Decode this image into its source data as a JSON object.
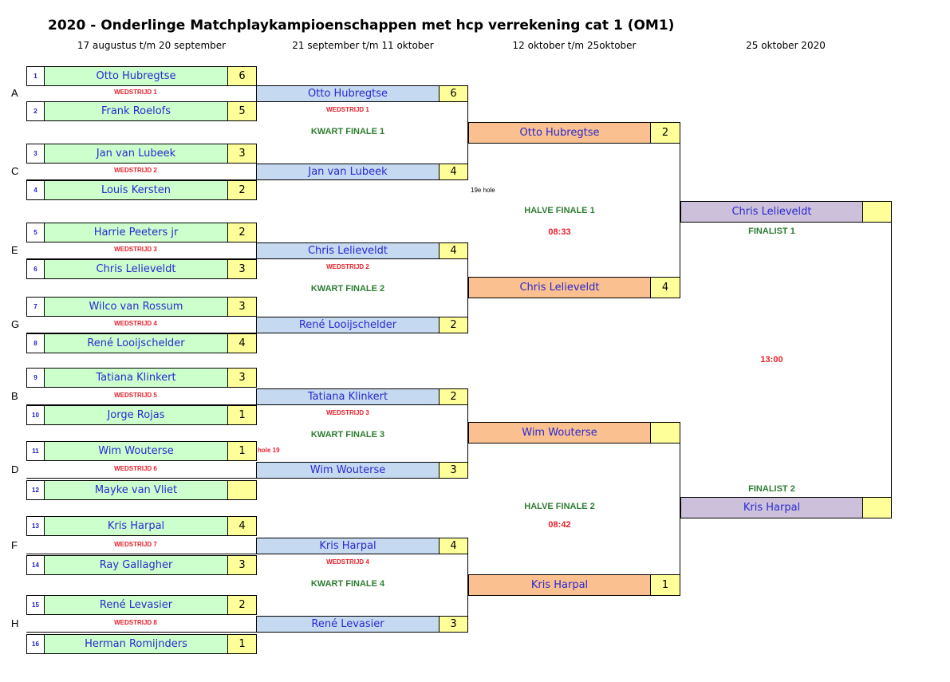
{
  "title": "2020 - Onderlinge Matchplaykampioenschappen met hcp verrekening cat 1 (OM1)",
  "headers": [
    "17 augustus t/m 20 september",
    "21 september t/m 11 oktober",
    "12 oktober t/m 25oktober",
    "25 oktober 2020"
  ],
  "colors": {
    "round1": "#ccffcc",
    "round2": "#c5d9f1",
    "round3": "#fac090",
    "final": "#ccc0da",
    "score": "#ffff99",
    "match_label": "#e8202a",
    "stage_label": "#2e7d32"
  },
  "round1": [
    {
      "group": "A",
      "label": "WEDSTRIJD 1",
      "players": [
        {
          "seed": "1",
          "name": "Otto Hubregtse",
          "score": "6"
        },
        {
          "seed": "2",
          "name": "Frank Roelofs",
          "score": "5"
        }
      ]
    },
    {
      "group": "C",
      "label": "WEDSTRIJD 2",
      "players": [
        {
          "seed": "3",
          "name": "Jan van Lubeek",
          "score": "3"
        },
        {
          "seed": "4",
          "name": "Louis Kersten",
          "score": "2"
        }
      ]
    },
    {
      "group": "E",
      "label": "WEDSTRIJD 3",
      "players": [
        {
          "seed": "5",
          "name": "Harrie Peeters jr",
          "score": "2"
        },
        {
          "seed": "6",
          "name": "Chris Lelieveldt",
          "score": "3"
        }
      ]
    },
    {
      "group": "G",
      "label": "WEDSTRIJD 4",
      "players": [
        {
          "seed": "7",
          "name": "Wilco van Rossum",
          "score": "3"
        },
        {
          "seed": "8",
          "name": "René Looijschelder",
          "score": "4"
        }
      ]
    },
    {
      "group": "B",
      "label": "WEDSTRIJD 5",
      "players": [
        {
          "seed": "9",
          "name": "Tatiana Klinkert",
          "score": "3"
        },
        {
          "seed": "10",
          "name": "Jorge Rojas",
          "score": "1"
        }
      ]
    },
    {
      "group": "D",
      "label": "WEDSTRIJD 6",
      "players": [
        {
          "seed": "11",
          "name": "Wim Wouterse",
          "score": "1"
        },
        {
          "seed": "12",
          "name": "Mayke van Vliet",
          "score": ""
        }
      ]
    },
    {
      "group": "F",
      "label": "WEDSTRIJD 7",
      "players": [
        {
          "seed": "13",
          "name": "Kris Harpal",
          "score": "4"
        },
        {
          "seed": "14",
          "name": "Ray Gallagher",
          "score": "3"
        }
      ]
    },
    {
      "group": "H",
      "label": "WEDSTRIJD 8",
      "players": [
        {
          "seed": "15",
          "name": "René Levasier",
          "score": "2"
        },
        {
          "seed": "16",
          "name": "Herman Romijnders",
          "score": "1"
        }
      ]
    }
  ],
  "round2": [
    {
      "name": "Otto Hubregtse",
      "score": "6"
    },
    {
      "name": "Jan van Lubeek",
      "score": "4"
    },
    {
      "name": "Chris Lelieveldt",
      "score": "4"
    },
    {
      "name": "René Looijschelder",
      "score": "2"
    },
    {
      "name": "Tatiana Klinkert",
      "score": "2"
    },
    {
      "name": "Wim Wouterse",
      "score": "3"
    },
    {
      "name": "Kris Harpal",
      "score": "4"
    },
    {
      "name": "René Levasier",
      "score": "3"
    }
  ],
  "round2_labels": [
    {
      "match": "WEDSTRIJD 1",
      "stage": "KWART FINALE 1"
    },
    {
      "match": "WEDSTRIJD 2",
      "stage": "KWART FINALE 2"
    },
    {
      "match": "WEDSTRIJD 3",
      "stage": "KWART FINALE 3"
    },
    {
      "match": "WEDSTRIJD 4",
      "stage": "KWART FINALE 4"
    }
  ],
  "round3": [
    {
      "name": "Otto Hubregtse",
      "score": "2"
    },
    {
      "name": "Chris Lelieveldt",
      "score": "4"
    },
    {
      "name": "Wim Wouterse",
      "score": ""
    },
    {
      "name": "Kris Harpal",
      "score": "1"
    }
  ],
  "round3_labels": [
    {
      "stage": "HALVE FINALE 1",
      "time": "08:33"
    },
    {
      "stage": "HALVE FINALE 2",
      "time": "08:42"
    }
  ],
  "final": [
    {
      "name": "Chris Lelieveldt",
      "score": "",
      "label": "FINALIST 1"
    },
    {
      "name": "Kris Harpal",
      "score": "",
      "label": "FINALIST 2"
    }
  ],
  "final_time": "13:00",
  "notes": {
    "hole19_r1": "hole 19",
    "hole19_r2": "19e hole"
  }
}
